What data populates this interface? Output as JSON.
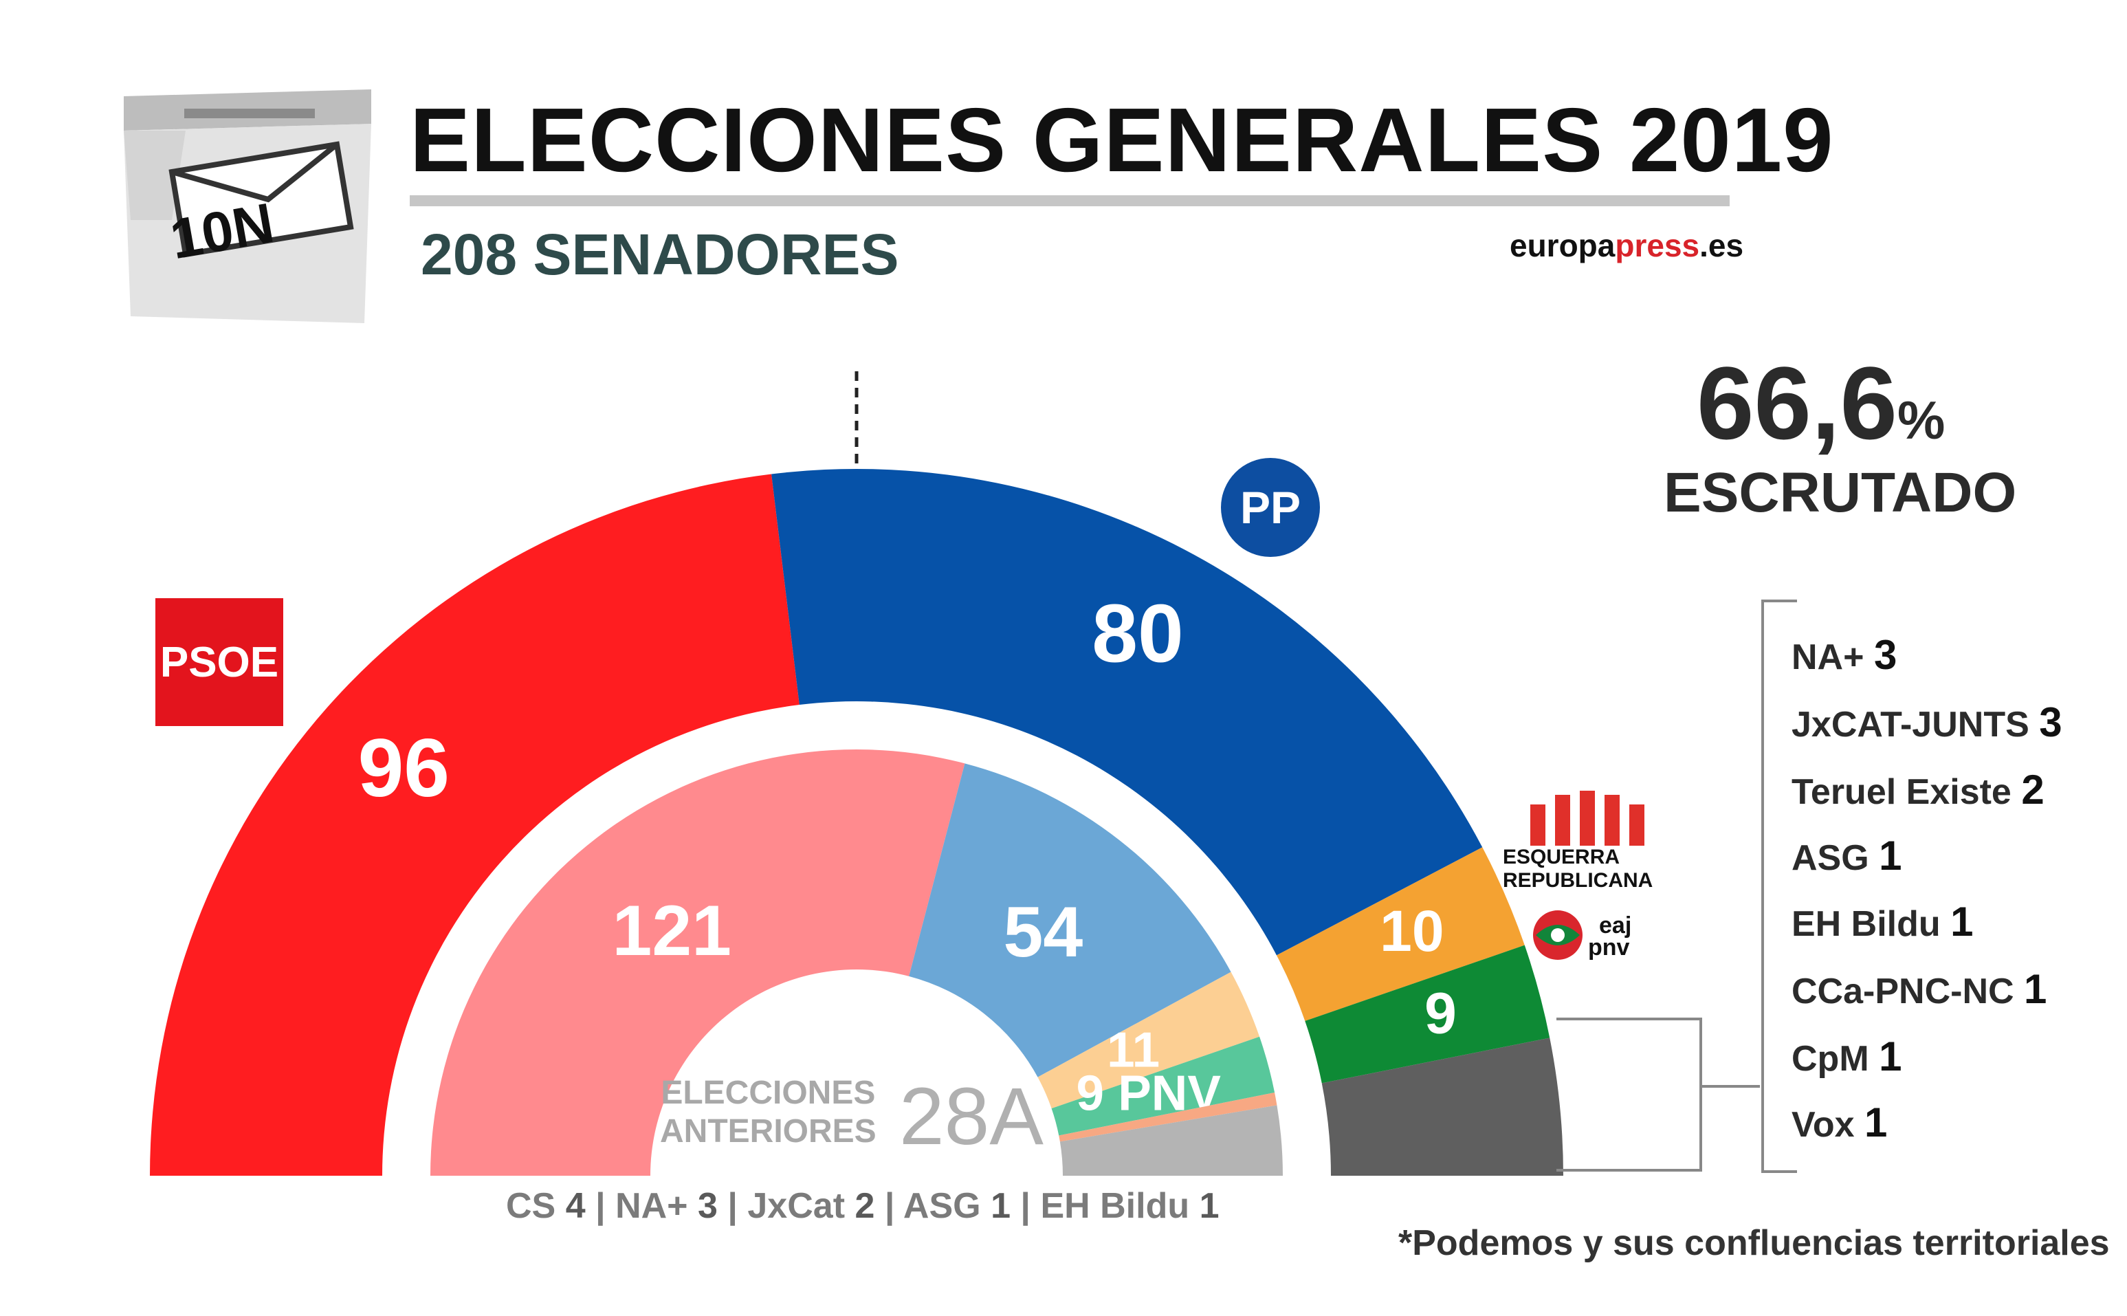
{
  "header": {
    "title": "ELECCIONES GENERALES 2019",
    "subtitle": "208 SENADORES",
    "brand_part1": "europa",
    "brand_part2": "press",
    "brand_part3": ".es",
    "ballot_tag": "10N"
  },
  "scrutiny": {
    "value": "66,6",
    "unit": "%",
    "label": "ESCRUTADO"
  },
  "logos": {
    "psoe": "PSOE",
    "pp": "PP",
    "erc_line1": "ESQUERRA",
    "erc_line2": "REPUBLICANA",
    "pnv_line1": "eaj",
    "pnv_line2": "pnv"
  },
  "others_list": [
    {
      "name": "NA+",
      "seats": "3"
    },
    {
      "name": "JxCAT-JUNTS",
      "seats": "3"
    },
    {
      "name": "Teruel Existe",
      "seats": "2"
    },
    {
      "name": "ASG",
      "seats": "1"
    },
    {
      "name": "EH Bildu",
      "seats": "1"
    },
    {
      "name": "CCa-PNC-NC",
      "seats": "1"
    },
    {
      "name": "CpM",
      "seats": "1"
    },
    {
      "name": "Vox",
      "seats": "1"
    }
  ],
  "previous_others": [
    {
      "name": "CS",
      "seats": "4"
    },
    {
      "name": "NA+",
      "seats": "3"
    },
    {
      "name": "JxCat",
      "seats": "2"
    },
    {
      "name": "ASG",
      "seats": "1"
    },
    {
      "name": "EH Bildu",
      "seats": "1"
    }
  ],
  "previous_label_line1": "ELECCIONES",
  "previous_label_line2": "ANTERIORES",
  "previous_label_tag": "28A",
  "footnote": "*Podemos y sus confluencias territoriales",
  "chart_data": [
    {
      "type": "pie",
      "subtype": "parliament-half-donut",
      "total": 208,
      "series": [
        {
          "name": "PSOE",
          "value": 96,
          "label": "96",
          "color": "#ff1d20"
        },
        {
          "name": "PP",
          "value": 80,
          "label": "80",
          "color": "#0652a8"
        },
        {
          "name": "ERC",
          "value": 10,
          "label": "10",
          "color": "#f4a232"
        },
        {
          "name": "PNV",
          "value": 9,
          "label": "9",
          "color": "#0e8a35"
        },
        {
          "name": "",
          "value": 13,
          "label": "",
          "color": "#5f5f5f"
        }
      ]
    },
    {
      "type": "pie",
      "subtype": "parliament-half-donut",
      "total": 208,
      "series": [
        {
          "name": "PSOE",
          "value": 121,
          "label": "121",
          "color": "#ff8a8e"
        },
        {
          "name": "PP",
          "value": 54,
          "label": "54",
          "color": "#6ba7d6"
        },
        {
          "name": "ERC",
          "value": 11,
          "label": "11",
          "color": "#fccf93"
        },
        {
          "name": "PNV",
          "value": 9,
          "label": "9 PNV",
          "color": "#58c79b"
        },
        {
          "name": "",
          "value": 2,
          "label": "",
          "color": "#f7a883"
        },
        {
          "name": "",
          "value": 11,
          "label": "",
          "color": "#b4b4b4"
        }
      ]
    }
  ]
}
